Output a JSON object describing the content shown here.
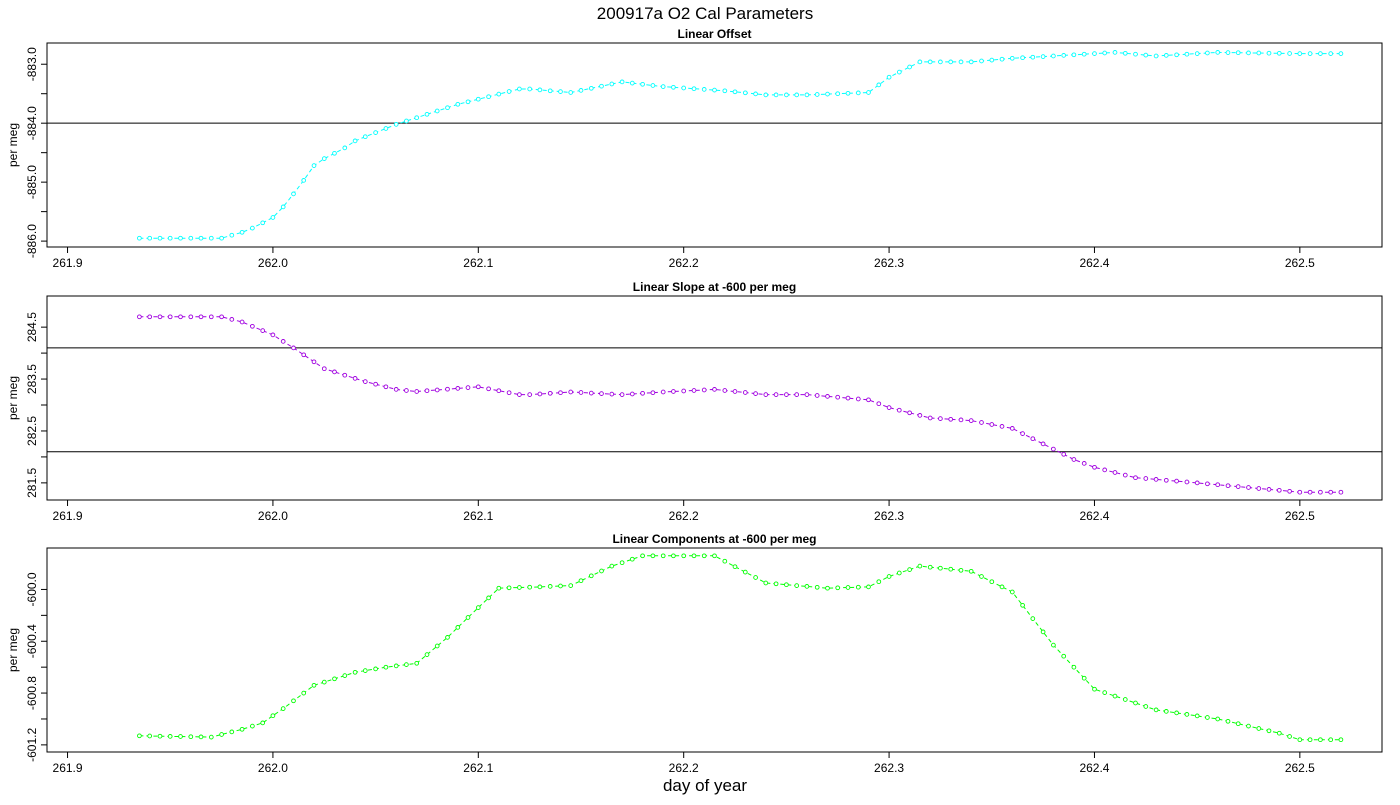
{
  "figure": {
    "title": "200917a   O2 Cal Parameters",
    "xlabel": "day of year"
  },
  "chart_data": [
    {
      "type": "line",
      "title": "Linear Offset",
      "ylabel": "per meg",
      "color": "#00ffff",
      "xlim": [
        261.89,
        262.54
      ],
      "ylim": [
        -886.1,
        -882.64
      ],
      "x_ticks": [
        261.9,
        262.0,
        262.1,
        262.2,
        262.3,
        262.4,
        262.5
      ],
      "x_tick_labels": [
        "261.9",
        "262.0",
        "262.1",
        "262.2",
        "262.3",
        "262.4",
        "262.5"
      ],
      "y_ticks": [
        -886.0,
        -885.5,
        -885.0,
        -884.5,
        -884.0,
        -883.5,
        -883.0
      ],
      "y_tick_labels": [
        "-886.0",
        "",
        "-885.0",
        "",
        "-884.0",
        "",
        "-883.0"
      ],
      "hlines": [
        -884.0
      ],
      "series": [
        {
          "name": "Linear Offset",
          "x": [
            261.935,
            261.975,
            261.985,
            261.99,
            262.0,
            262.005,
            262.01,
            262.015,
            262.02,
            262.025,
            262.035,
            262.04,
            262.06,
            262.09,
            262.12,
            262.125,
            262.145,
            262.17,
            262.19,
            262.22,
            262.24,
            262.26,
            262.29,
            262.3,
            262.315,
            262.34,
            262.36,
            262.41,
            262.43,
            262.46,
            262.5,
            262.52
          ],
          "y": [
            -885.95,
            -885.95,
            -885.85,
            -885.78,
            -885.6,
            -885.42,
            -885.2,
            -884.97,
            -884.72,
            -884.6,
            -884.42,
            -884.3,
            -884.02,
            -883.68,
            -883.42,
            -883.42,
            -883.48,
            -883.3,
            -883.38,
            -883.45,
            -883.52,
            -883.52,
            -883.48,
            -883.22,
            -882.96,
            -882.96,
            -882.9,
            -882.8,
            -882.86,
            -882.8,
            -882.82,
            -882.82
          ]
        }
      ]
    },
    {
      "type": "line",
      "title": "Linear Slope at -600 per meg",
      "ylabel": "per meg",
      "color": "#a000e0",
      "xlim": [
        261.89,
        262.54
      ],
      "ylim": [
        281.17,
        285.1
      ],
      "x_ticks": [
        261.9,
        262.0,
        262.1,
        262.2,
        262.3,
        262.4,
        262.5
      ],
      "x_tick_labels": [
        "261.9",
        "262.0",
        "262.1",
        "262.2",
        "262.3",
        "262.4",
        "262.5"
      ],
      "y_ticks": [
        281.5,
        282.0,
        282.5,
        283.0,
        283.5,
        284.0,
        284.5
      ],
      "y_tick_labels": [
        "281.5",
        "",
        "282.5",
        "",
        "283.5",
        "",
        "284.5"
      ],
      "hlines": [
        284.1,
        282.1
      ],
      "series": [
        {
          "name": "Linear Slope",
          "x": [
            261.935,
            261.975,
            261.985,
            262.0,
            262.01,
            262.025,
            262.045,
            262.06,
            262.07,
            262.1,
            262.12,
            262.125,
            262.145,
            262.17,
            262.19,
            262.215,
            262.24,
            262.26,
            262.29,
            262.3,
            262.32,
            262.34,
            262.36,
            262.38,
            262.39,
            262.4,
            262.42,
            262.45,
            262.5,
            262.52
          ],
          "y": [
            284.7,
            284.7,
            284.6,
            284.35,
            284.1,
            283.7,
            283.45,
            283.3,
            283.26,
            283.35,
            283.2,
            283.2,
            283.25,
            283.2,
            283.25,
            283.3,
            283.2,
            283.2,
            283.1,
            282.95,
            282.75,
            282.7,
            282.55,
            282.15,
            281.95,
            281.8,
            281.6,
            281.5,
            281.32,
            281.32
          ]
        }
      ]
    },
    {
      "type": "line",
      "title": "Linear Components at -600 per meg",
      "ylabel": "per meg",
      "color": "#00ff00",
      "xlim": [
        261.89,
        262.54
      ],
      "ylim": [
        -601.255,
        -599.68
      ],
      "x_ticks": [
        261.9,
        262.0,
        262.1,
        262.2,
        262.3,
        262.4,
        262.5
      ],
      "x_tick_labels": [
        "261.9",
        "262.0",
        "262.1",
        "262.2",
        "262.3",
        "262.4",
        "262.5"
      ],
      "y_ticks": [
        -601.2,
        -601.0,
        -600.8,
        -600.6,
        -600.4,
        -600.2,
        -600.0
      ],
      "y_tick_labels": [
        "-601.2",
        "",
        "-600.8",
        "",
        "-600.4",
        "",
        "-600.0"
      ],
      "hlines": [],
      "series": [
        {
          "name": "Linear Components",
          "x": [
            261.935,
            261.97,
            261.985,
            261.995,
            262.005,
            262.02,
            262.04,
            262.055,
            262.07,
            262.085,
            262.1,
            262.11,
            262.13,
            262.145,
            262.165,
            262.18,
            262.205,
            262.215,
            262.24,
            262.27,
            262.29,
            262.3,
            262.315,
            262.34,
            262.36,
            262.38,
            262.4,
            262.43,
            262.46,
            262.49,
            262.5,
            262.52
          ],
          "y": [
            -601.13,
            -601.14,
            -601.08,
            -601.03,
            -600.92,
            -600.74,
            -600.64,
            -600.6,
            -600.57,
            -600.37,
            -600.14,
            -599.99,
            -599.98,
            -599.97,
            -599.82,
            -599.74,
            -599.74,
            -599.74,
            -599.95,
            -599.99,
            -599.98,
            -599.9,
            -599.82,
            -599.86,
            -600.02,
            -600.43,
            -600.77,
            -600.93,
            -601.0,
            -601.11,
            -601.16,
            -601.16
          ]
        }
      ]
    }
  ]
}
